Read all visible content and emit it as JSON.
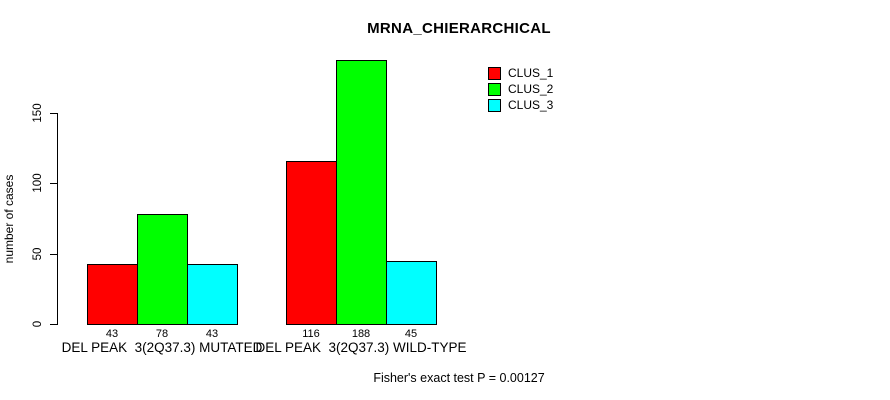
{
  "chart_data": {
    "type": "bar",
    "title": "MRNA_CHIERARCHICAL",
    "ylabel": "number of cases",
    "xlabel": "",
    "categories": [
      "DEL PEAK  3(2Q37.3) MUTATED",
      "DEL PEAK  3(2Q37.3) WILD-TYPE"
    ],
    "series": [
      {
        "name": "CLUS_1",
        "color": "#ff0000",
        "values": [
          43,
          116
        ]
      },
      {
        "name": "CLUS_2",
        "color": "#00ff00",
        "values": [
          78,
          188
        ]
      },
      {
        "name": "CLUS_3",
        "color": "#00ffff",
        "values": [
          43,
          45
        ]
      }
    ],
    "bar_value_labels_shown": true,
    "yticks": [
      0,
      50,
      100,
      150
    ],
    "ylim": [
      0,
      190
    ],
    "grid": false,
    "legend_position": "top-right",
    "footnote": "Fisher's exact test P = 0.00127"
  },
  "colors": {
    "background": "#ffffff",
    "axis": "#000000",
    "bar_border": "#000000",
    "text": "#000000",
    "clus_1": "#ff0000",
    "clus_2": "#00ff00",
    "clus_3": "#00ffff"
  }
}
